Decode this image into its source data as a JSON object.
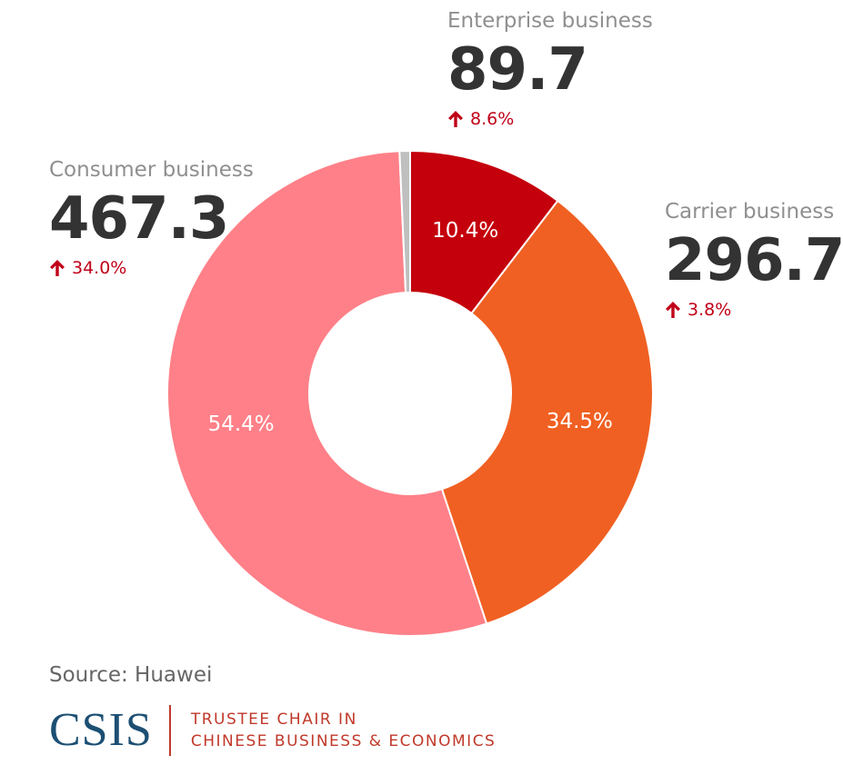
{
  "chart_data": {
    "type": "pie",
    "variant": "donut",
    "segments": [
      {
        "name": "Enterprise business",
        "percent": 10.4,
        "percent_label": "10.4%",
        "value": "89.7",
        "change": "8.6%",
        "color": "#c4000c"
      },
      {
        "name": "Carrier business",
        "percent": 34.5,
        "percent_label": "34.5%",
        "value": "296.7",
        "change": "3.8%",
        "color": "#f06022"
      },
      {
        "name": "Consumer business",
        "percent": 54.4,
        "percent_label": "54.4%",
        "value": "467.3",
        "change": "34.0%",
        "color": "#ff8088"
      },
      {
        "name": "",
        "percent": 0.7,
        "color": "#bfbfbf"
      }
    ],
    "start": "top, clockwise",
    "legend": "none",
    "change_direction": "up",
    "change_color": "#c00018"
  },
  "footer": {
    "source": "Source: Huawei",
    "logo_mark": "CSIS",
    "logo_line1": "TRUSTEE CHAIR IN",
    "logo_line2": "CHINESE BUSINESS & ECONOMICS",
    "logo_mark_color": "#1c4f73",
    "logo_accent_color": "#c0392b"
  }
}
